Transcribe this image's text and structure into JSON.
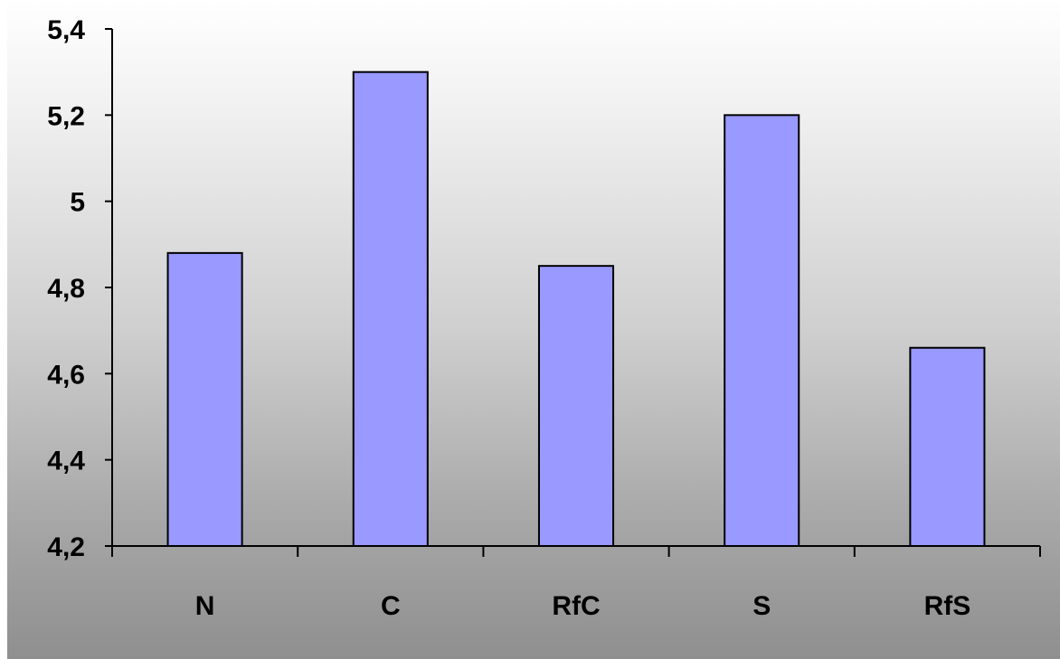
{
  "chart_data": {
    "type": "bar",
    "title": "",
    "xlabel": "",
    "ylabel": "",
    "categories": [
      "N",
      "C",
      "RfC",
      "S",
      "RfS"
    ],
    "values": [
      4.88,
      5.3,
      4.85,
      5.2,
      4.66
    ],
    "ylim": [
      4.2,
      5.4
    ],
    "yticks": [
      4.2,
      4.4,
      4.6,
      4.8,
      5.0,
      5.2,
      5.4
    ],
    "ytick_labels": [
      "4,2",
      "4,4",
      "4,6",
      "4,8",
      "5",
      "5,2",
      "5,4"
    ],
    "grid": false,
    "legend": "none",
    "bar_color": "#9999ff",
    "bar_edge_color": "#000000"
  }
}
